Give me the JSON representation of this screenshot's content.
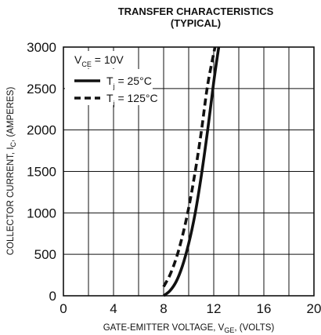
{
  "chart_data": {
    "type": "line",
    "title": "TRANSFER CHARACTERISTICS",
    "subtitle": "(TYPICAL)",
    "xlabel": {
      "main": "GATE-EMITTER VOLTAGE, V",
      "sub": "GE",
      "tail": ", (VOLTS)"
    },
    "ylabel": {
      "main": "COLLECTOR CURRENT, I",
      "sub": "C",
      "tail": ", (AMPERES)"
    },
    "xlim": [
      0,
      20
    ],
    "ylim": [
      0,
      3000
    ],
    "xticks": [
      "0",
      "4",
      "8",
      "12",
      "16",
      "20"
    ],
    "yticks": [
      "0",
      "500",
      "1000",
      "1500",
      "2000",
      "2500",
      "3000"
    ],
    "x_minor_step": 2,
    "y_step": 500,
    "grid": true,
    "legend_position": "top-left",
    "legend_header": {
      "main": "V",
      "sub": "CE",
      "tail": " = 10V"
    },
    "series": [
      {
        "name": "Tj = 25°C",
        "label_main": "T",
        "label_sub": "j",
        "label_tail": " = 25°C",
        "style": "solid",
        "x": [
          8.0,
          8.5,
          9.0,
          9.5,
          10.0,
          10.5,
          11.0,
          11.5,
          12.0,
          12.4
        ],
        "y": [
          0,
          60,
          170,
          360,
          630,
          980,
          1440,
          1980,
          2580,
          3000
        ]
      },
      {
        "name": "Tj = 125°C",
        "label_main": "T",
        "label_sub": "j",
        "label_tail": " = 125°C",
        "style": "dashed",
        "x": [
          8.0,
          8.5,
          9.0,
          9.5,
          10.0,
          10.5,
          11.0,
          11.5,
          12.1
        ],
        "y": [
          110,
          250,
          450,
          720,
          1060,
          1480,
          1970,
          2530,
          3000
        ]
      }
    ]
  }
}
